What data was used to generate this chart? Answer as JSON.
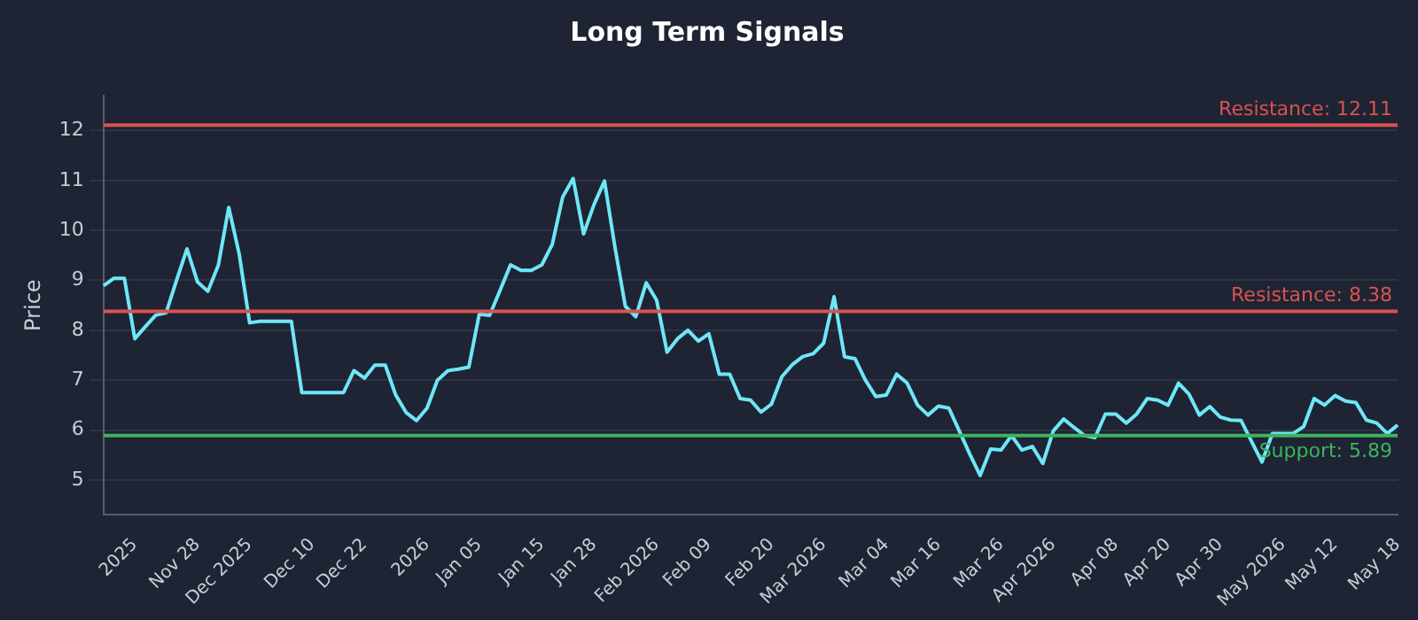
{
  "chart_data": {
    "type": "line",
    "title": "Long Term Signals",
    "ylabel": "Price",
    "categories": [
      null,
      null,
      null,
      "2025",
      null,
      null,
      null,
      null,
      null,
      "Nov 28",
      null,
      null,
      null,
      null,
      "Dec 2025",
      null,
      null,
      null,
      null,
      null,
      "Dec 10",
      null,
      null,
      null,
      null,
      "Dec 22",
      null,
      null,
      null,
      null,
      null,
      "2026",
      null,
      null,
      null,
      null,
      "Jan 05",
      null,
      null,
      null,
      null,
      null,
      "Jan 15",
      null,
      null,
      null,
      null,
      "Jan 28",
      null,
      null,
      null,
      null,
      null,
      "Feb 2026",
      null,
      null,
      null,
      null,
      "Feb 09",
      null,
      null,
      null,
      null,
      null,
      "Feb 20",
      null,
      null,
      null,
      null,
      "Mar 2026",
      null,
      null,
      null,
      null,
      null,
      "Mar 04",
      null,
      null,
      null,
      null,
      "Mar 16",
      null,
      null,
      null,
      null,
      null,
      "Mar 26",
      null,
      null,
      null,
      null,
      "Apr 2026",
      null,
      null,
      null,
      null,
      null,
      "Apr 08",
      null,
      null,
      null,
      null,
      "Apr 20",
      null,
      null,
      null,
      null,
      "Apr 30",
      null,
      null,
      null,
      null,
      null,
      "May 2026",
      null,
      null,
      null,
      null,
      "May 12",
      null,
      null,
      null,
      null,
      null,
      "May 18"
    ],
    "series": [
      {
        "color": "#6ee7f7",
        "values": [
          8.89,
          9.04,
          9.04,
          7.83,
          8.07,
          8.3,
          8.35,
          9.0,
          9.63,
          8.97,
          8.78,
          9.3,
          10.46,
          9.53,
          8.15,
          8.18,
          8.18,
          8.18,
          8.18,
          6.75,
          6.75,
          6.75,
          6.75,
          6.75,
          7.19,
          7.04,
          7.3,
          7.3,
          6.7,
          6.35,
          6.19,
          6.44,
          7.0,
          7.19,
          7.22,
          7.26,
          8.32,
          8.3,
          8.8,
          9.31,
          9.2,
          9.2,
          9.31,
          9.72,
          10.67,
          11.04,
          9.93,
          10.52,
          10.99,
          9.67,
          8.48,
          8.27,
          8.95,
          8.6,
          7.56,
          7.83,
          8.0,
          7.78,
          7.93,
          7.12,
          7.12,
          6.63,
          6.6,
          6.36,
          6.52,
          7.07,
          7.31,
          7.47,
          7.53,
          7.74,
          8.67,
          7.47,
          7.43,
          7.0,
          6.67,
          6.7,
          7.12,
          6.94,
          6.5,
          6.3,
          6.48,
          6.44,
          5.98,
          5.52,
          5.09,
          5.62,
          5.6,
          5.89,
          5.6,
          5.67,
          5.33,
          5.98,
          6.22,
          6.05,
          5.89,
          5.85,
          6.32,
          6.32,
          6.14,
          6.32,
          6.63,
          6.6,
          6.5,
          6.94,
          6.72,
          6.3,
          6.47,
          6.26,
          6.2,
          6.19,
          5.77,
          5.36,
          5.93,
          5.93,
          5.93,
          6.07,
          6.63,
          6.5,
          6.69,
          6.58,
          6.55,
          6.2,
          6.14,
          5.93,
          6.1
        ]
      }
    ],
    "ylim": [
      4.3,
      12.7
    ],
    "yticks": [
      5,
      6,
      7,
      8,
      9,
      10,
      11,
      12
    ],
    "grid": "y",
    "legend": false,
    "marker": "none",
    "line_style": "solid",
    "ref_lines": [
      {
        "axis": "y",
        "value": 12.11,
        "label": "Resistance: 12.11",
        "color": "#d9534f"
      },
      {
        "axis": "y",
        "value": 8.38,
        "label": "Resistance: 8.38",
        "color": "#d9534f"
      },
      {
        "axis": "y",
        "value": 5.89,
        "label": "Support: 5.89",
        "color": "#3fb25f"
      }
    ]
  }
}
